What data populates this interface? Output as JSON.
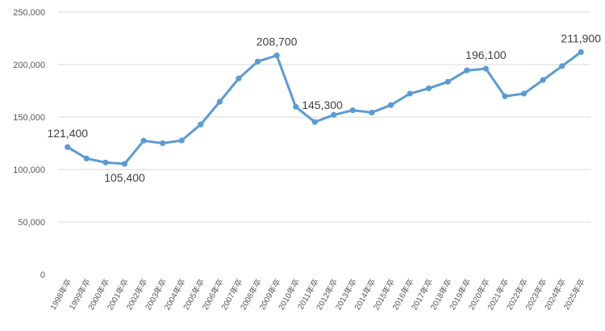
{
  "chart_data": {
    "type": "line",
    "title": "",
    "xlabel": "",
    "ylabel": "",
    "ylim": [
      0,
      250000
    ],
    "grid": true,
    "legend": "none",
    "line_color": "#5b9bd5",
    "y_ticks": [
      {
        "value": 0,
        "label": "0"
      },
      {
        "value": 50000,
        "label": "50,000"
      },
      {
        "value": 100000,
        "label": "100,000"
      },
      {
        "value": 150000,
        "label": "150,000"
      },
      {
        "value": 200000,
        "label": "200,000"
      },
      {
        "value": 250000,
        "label": "250,000"
      }
    ],
    "categories": [
      "1998年卒",
      "1999年卒",
      "2000年卒",
      "2001年卒",
      "2002年卒",
      "2003年卒",
      "2004年卒",
      "2005年卒",
      "2006年卒",
      "2007年卒",
      "2008年卒",
      "2009年卒",
      "2010年卒",
      "2011年卒",
      "2012年卒",
      "2013年卒",
      "2014年卒",
      "2015年卒",
      "2016年卒",
      "2017年卒",
      "2018年卒",
      "2019年卒",
      "2020年卒",
      "2021年卒",
      "2022年卒",
      "2023年卒",
      "2024年卒",
      "2025年卒"
    ],
    "series": [
      {
        "values": [
          121400,
          110500,
          106700,
          105400,
          127500,
          125100,
          127700,
          142900,
          164600,
          186800,
          202900,
          208700,
          159800,
          145300,
          152100,
          156500,
          154300,
          161400,
          172300,
          177400,
          183600,
          194500,
          196100,
          169800,
          172300,
          185300,
          198500,
          211900
        ]
      }
    ],
    "data_labels": [
      {
        "index": 0,
        "text": "121,400"
      },
      {
        "index": 3,
        "text": "105,400"
      },
      {
        "index": 11,
        "text": "208,700"
      },
      {
        "index": 13,
        "text": "145,300"
      },
      {
        "index": 22,
        "text": "196,100"
      },
      {
        "index": 27,
        "text": "211,900"
      }
    ]
  }
}
